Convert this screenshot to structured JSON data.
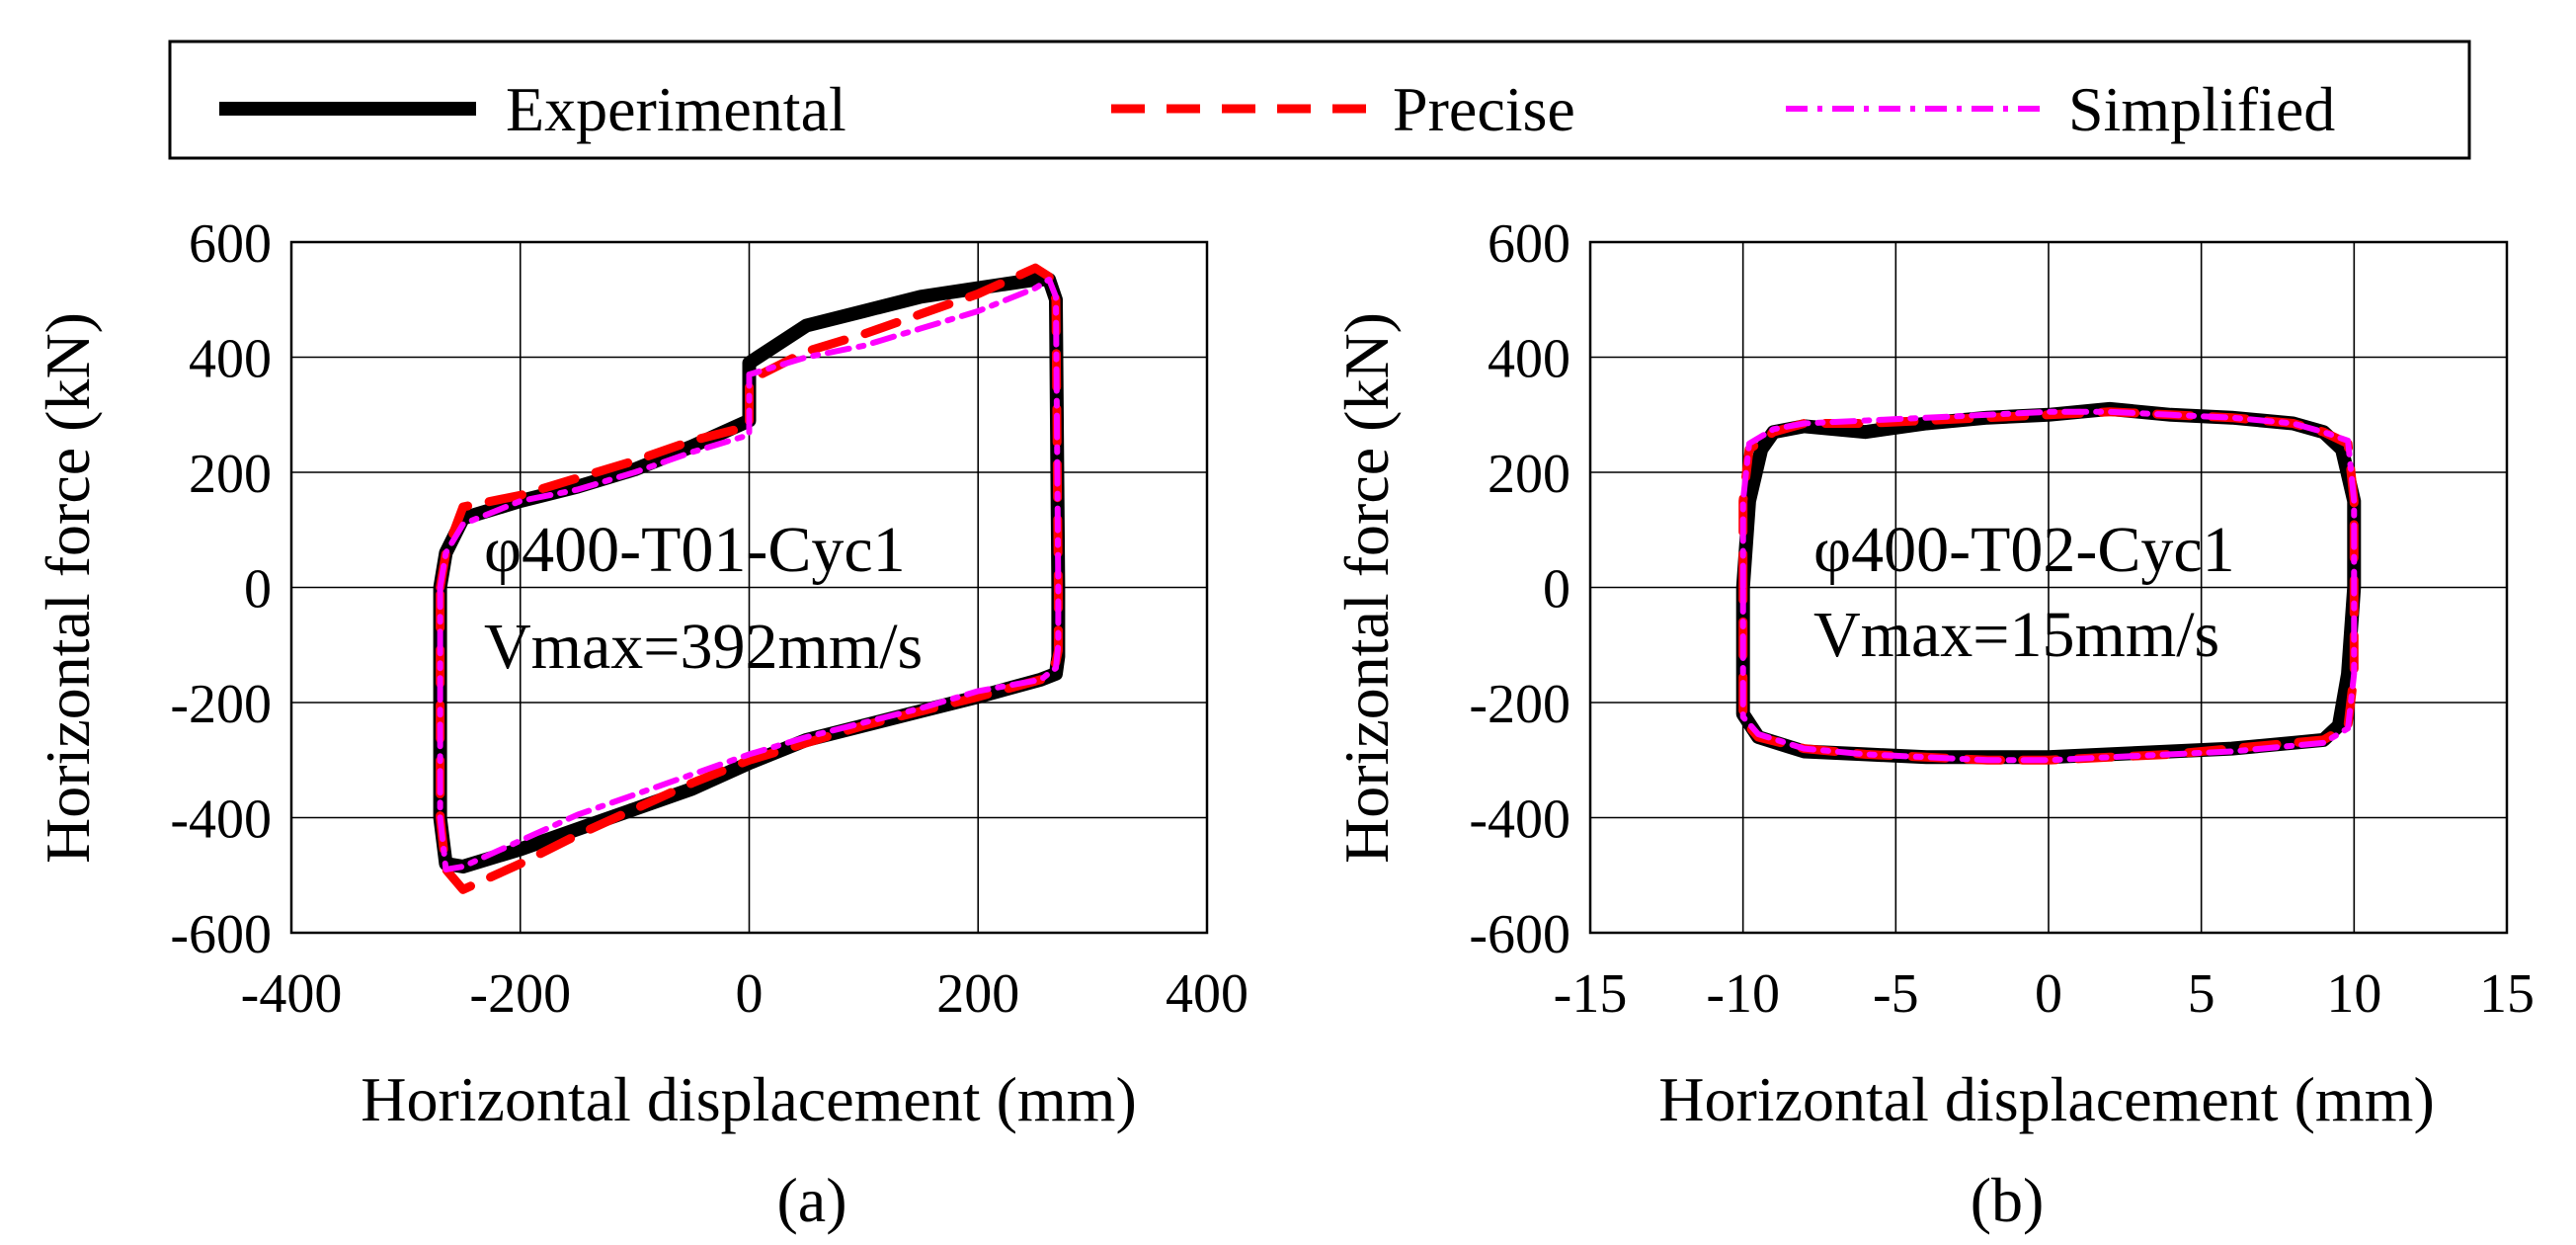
{
  "legend": {
    "entries": [
      {
        "name": "Experimental",
        "color": "#000000",
        "style": "solid"
      },
      {
        "name": "Precise",
        "color": "#ff0000",
        "style": "dashed"
      },
      {
        "name": "Simplified",
        "color": "#ff00ff",
        "style": "dashdot"
      }
    ],
    "placement": "top"
  },
  "chart_data": [
    {
      "type": "line",
      "subfigure_label": "(a)",
      "xlabel": "Horizontal displacement (mm)",
      "ylabel": "Horizontal force (kN)",
      "xlim": [
        -400,
        400
      ],
      "ylim": [
        -600,
        600
      ],
      "xticks": [
        -400,
        -200,
        0,
        200,
        400
      ],
      "yticks": [
        -600,
        -400,
        -200,
        0,
        200,
        400,
        600
      ],
      "xtick_labels": [
        "-400",
        "-200",
        "0",
        "200",
        "400"
      ],
      "ytick_labels": [
        "-600",
        "-400",
        "-200",
        "0",
        "200",
        "400",
        "600"
      ],
      "grid": true,
      "annotation": [
        "φ400-T01-Cyc1",
        "Vmax=392mm/s"
      ],
      "series": [
        {
          "name": "Experimental",
          "x": [
            -270,
            -265,
            -250,
            -200,
            -150,
            -100,
            -50,
            0,
            0,
            50,
            100,
            150,
            200,
            250,
            262,
            268,
            270,
            270,
            268,
            255,
            200,
            150,
            100,
            50,
            0,
            -50,
            -100,
            -150,
            -200,
            -250,
            -265,
            -270,
            -270
          ],
          "y": [
            0,
            60,
            120,
            150,
            175,
            205,
            245,
            290,
            390,
            455,
            480,
            505,
            520,
            535,
            535,
            500,
            0,
            -120,
            -150,
            -160,
            -190,
            -215,
            -240,
            -265,
            -305,
            -350,
            -385,
            -420,
            -455,
            -485,
            -480,
            -400,
            0
          ]
        },
        {
          "name": "Precise",
          "x": [
            -270,
            -265,
            -250,
            -200,
            -150,
            -100,
            -50,
            0,
            0,
            50,
            100,
            150,
            200,
            250,
            262,
            268,
            270,
            270,
            268,
            255,
            200,
            150,
            100,
            50,
            0,
            -50,
            -100,
            -150,
            -200,
            -250,
            -265,
            -270,
            -270
          ],
          "y": [
            0,
            60,
            140,
            160,
            190,
            220,
            255,
            280,
            360,
            410,
            440,
            475,
            510,
            555,
            540,
            500,
            0,
            -110,
            -130,
            -160,
            -190,
            -215,
            -240,
            -270,
            -300,
            -340,
            -385,
            -430,
            -480,
            -525,
            -490,
            -400,
            0
          ]
        },
        {
          "name": "Simplified",
          "x": [
            -270,
            -265,
            -250,
            -200,
            -150,
            -100,
            -50,
            0,
            0,
            50,
            100,
            150,
            200,
            250,
            262,
            268,
            270,
            270,
            268,
            255,
            200,
            150,
            100,
            50,
            0,
            -50,
            -100,
            -150,
            -200,
            -250,
            -265,
            -270,
            -270
          ],
          "y": [
            0,
            60,
            110,
            150,
            170,
            200,
            235,
            265,
            370,
            400,
            420,
            450,
            480,
            520,
            535,
            505,
            0,
            -100,
            -140,
            -160,
            -180,
            -210,
            -235,
            -260,
            -290,
            -325,
            -360,
            -395,
            -440,
            -485,
            -490,
            -400,
            0
          ]
        }
      ]
    },
    {
      "type": "line",
      "subfigure_label": "(b)",
      "xlabel": "Horizontal displacement (mm)",
      "ylabel": "Horizontal force (kN)",
      "xlim": [
        -15,
        15
      ],
      "ylim": [
        -600,
        600
      ],
      "xticks": [
        -15,
        -10,
        -5,
        0,
        5,
        10,
        15
      ],
      "yticks": [
        -600,
        -400,
        -200,
        0,
        200,
        400,
        600
      ],
      "xtick_labels": [
        "-15",
        "-10",
        "-5",
        "0",
        "5",
        "10",
        "15"
      ],
      "ytick_labels": [
        "-600",
        "-400",
        "-200",
        "0",
        "200",
        "400",
        "600"
      ],
      "grid": true,
      "annotation": [
        "φ400-T02-Cyc1",
        "Vmax=15mm/s"
      ],
      "series": [
        {
          "name": "Experimental",
          "x": [
            -10,
            -9.8,
            -9.4,
            -9,
            -8,
            -6,
            -4,
            -2,
            0,
            2,
            4,
            6,
            8,
            9,
            9.6,
            10,
            10,
            9.8,
            9.5,
            9,
            8,
            6,
            4,
            2,
            0,
            -2,
            -4,
            -6,
            -8,
            -9.5,
            -10,
            -10
          ],
          "y": [
            0,
            150,
            240,
            270,
            280,
            270,
            285,
            295,
            300,
            310,
            300,
            295,
            285,
            270,
            240,
            150,
            0,
            -150,
            -240,
            -265,
            -270,
            -280,
            -285,
            -290,
            -295,
            -295,
            -295,
            -290,
            -285,
            -260,
            -220,
            0
          ]
        },
        {
          "name": "Precise",
          "x": [
            -10,
            -10,
            -9.8,
            -9,
            -8,
            -6,
            -4,
            -2,
            0,
            2,
            4,
            6,
            8,
            9,
            9.8,
            10,
            10,
            10,
            9.8,
            9,
            8,
            6,
            4,
            2,
            0,
            -2,
            -4,
            -6,
            -8,
            -9.5,
            -10,
            -10
          ],
          "y": [
            0,
            150,
            240,
            270,
            285,
            285,
            290,
            295,
            300,
            305,
            300,
            295,
            285,
            270,
            250,
            150,
            0,
            -150,
            -240,
            -265,
            -270,
            -280,
            -290,
            -295,
            -300,
            -300,
            -295,
            -290,
            -280,
            -260,
            -230,
            0
          ]
        },
        {
          "name": "Simplified",
          "x": [
            -10,
            -10,
            -9.8,
            -9,
            -8,
            -6,
            -4,
            -2,
            0,
            2,
            4,
            6,
            8,
            9,
            9.8,
            10,
            10,
            10,
            9.8,
            9,
            8,
            6,
            4,
            2,
            0,
            -2,
            -4,
            -6,
            -8,
            -9.5,
            -10,
            -10
          ],
          "y": [
            0,
            150,
            250,
            275,
            285,
            290,
            295,
            300,
            305,
            305,
            300,
            295,
            285,
            270,
            255,
            150,
            0,
            -150,
            -245,
            -270,
            -275,
            -285,
            -290,
            -295,
            -300,
            -300,
            -295,
            -290,
            -280,
            -255,
            -225,
            0
          ]
        }
      ]
    }
  ]
}
